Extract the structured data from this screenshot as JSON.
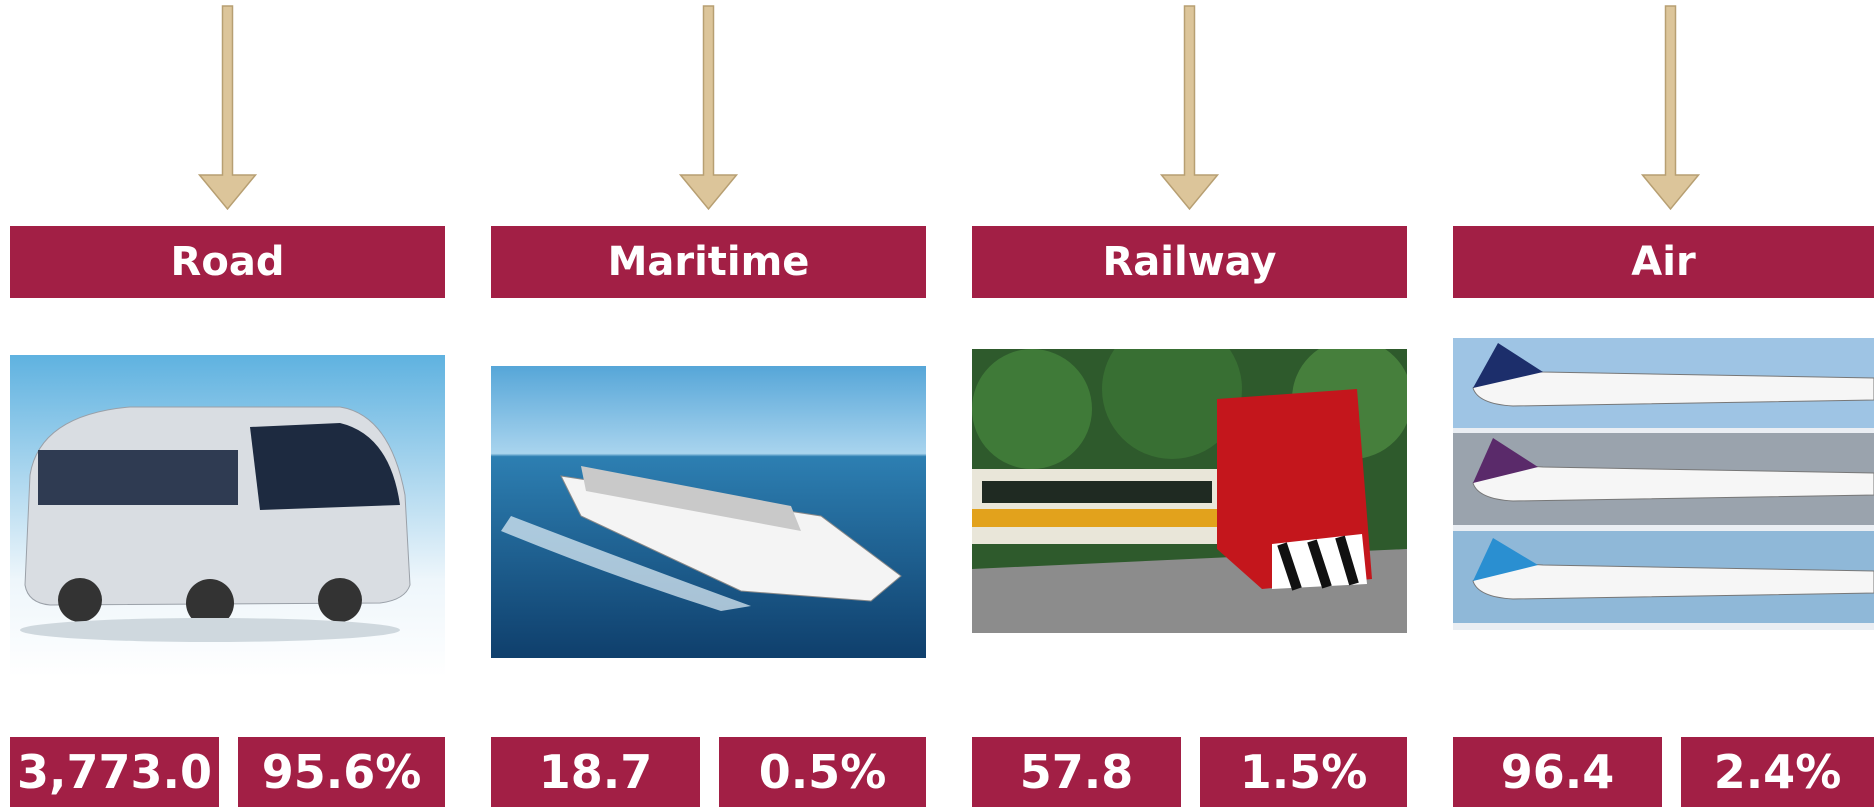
{
  "columns": [
    {
      "label": "Road",
      "value": "3,773.0",
      "share": "95.6%"
    },
    {
      "label": "Maritime",
      "value": "18.7",
      "share": "0.5%"
    },
    {
      "label": "Railway",
      "value": "57.8",
      "share": "1.5%"
    },
    {
      "label": "Air",
      "value": "96.4",
      "share": "2.4%"
    }
  ]
}
